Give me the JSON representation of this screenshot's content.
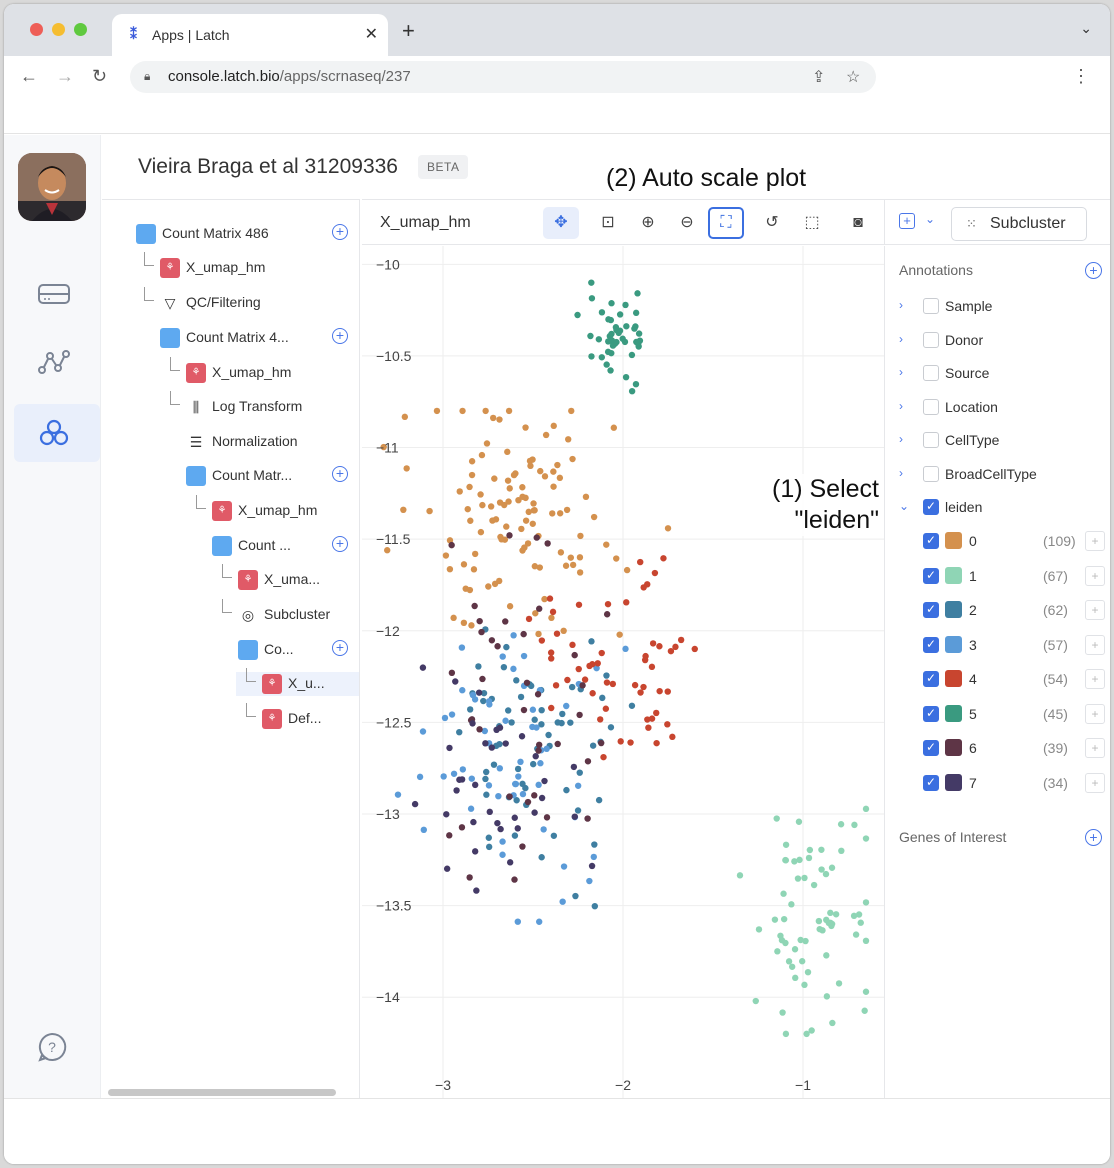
{
  "browser": {
    "tab_title": "Apps | Latch",
    "url_host": "console.latch.bio",
    "url_path": "/apps/scrnaseq/237"
  },
  "header": {
    "title": "Vieira Braga et al 31209336",
    "badge": "BETA"
  },
  "annotations": {
    "auto_scale": "(2) Auto scale plot",
    "select_line1": "(1) Select",
    "select_line2": "\"leiden\""
  },
  "tree": [
    {
      "label": "Count Matrix 486",
      "icon": "matrix-icon"
    },
    {
      "label": "X_umap_hm",
      "icon": "embedding-icon"
    },
    {
      "label": "QC/Filtering",
      "icon": "filter-icon"
    },
    {
      "label": "Count Matrix 4...",
      "icon": "matrix-icon"
    },
    {
      "label": "X_umap_hm",
      "icon": "embedding-icon"
    },
    {
      "label": "Log Transform",
      "icon": "bar-chart-icon"
    },
    {
      "label": "Normalization",
      "icon": "list-icon"
    },
    {
      "label": "Count Matr...",
      "icon": "matrix-icon"
    },
    {
      "label": "X_umap_hm",
      "icon": "embedding-icon"
    },
    {
      "label": "Count ...",
      "icon": "matrix-icon"
    },
    {
      "label": "X_uma...",
      "icon": "embedding-icon"
    },
    {
      "label": "Subcluster",
      "icon": "target-icon"
    },
    {
      "label": "Co...",
      "icon": "matrix-icon"
    },
    {
      "label": "X_u...",
      "icon": "embedding-icon"
    },
    {
      "label": "Def...",
      "icon": "embedding-icon"
    }
  ],
  "plot": {
    "name": "X_umap_hm",
    "toolbar": [
      "pan-icon",
      "zoom-box-icon",
      "zoom-in-icon",
      "zoom-out-icon",
      "autoscale-icon",
      "lasso-icon",
      "box-select-icon",
      "camera-icon"
    ]
  },
  "panel": {
    "subcluster_label": "Subcluster",
    "annotations_title": "Annotations",
    "genes_title": "Genes of Interest",
    "fields": [
      "Sample",
      "Donor",
      "Source",
      "Location",
      "CellType",
      "BroadCellType",
      "leiden"
    ],
    "leiden_clusters": [
      {
        "label": "0",
        "count": "(109)",
        "color": "#d4914e"
      },
      {
        "label": "1",
        "count": "(67)",
        "color": "#8fd5b5"
      },
      {
        "label": "2",
        "count": "(62)",
        "color": "#3f7fa1"
      },
      {
        "label": "3",
        "count": "(57)",
        "color": "#5b9bd8"
      },
      {
        "label": "4",
        "count": "(54)",
        "color": "#c8452f"
      },
      {
        "label": "5",
        "count": "(45)",
        "color": "#3a9a80"
      },
      {
        "label": "6",
        "count": "(39)",
        "color": "#5e3546"
      },
      {
        "label": "7",
        "count": "(34)",
        "color": "#443a66"
      }
    ]
  },
  "chart_data": {
    "type": "scatter",
    "title": "",
    "xlabel": "",
    "ylabel": "",
    "xlim": [
      -3.45,
      -0.55
    ],
    "ylim": [
      -14.55,
      -9.9
    ],
    "x_ticks": [
      "−3",
      "−2",
      "−1"
    ],
    "y_ticks": [
      "−10",
      "−10.5",
      "−11",
      "−11.5",
      "−12",
      "−12.5",
      "−13",
      "−13.5",
      "−14"
    ],
    "grid": true,
    "series": [
      {
        "name": "0",
        "color": "#d4914e",
        "count": 109,
        "x_range": [
          -3.5,
          -1.6
        ],
        "y_range": [
          -12.6,
          -10.8
        ],
        "cluster_center": [
          -2.6,
          -11.4
        ]
      },
      {
        "name": "1",
        "color": "#8fd5b5",
        "count": 67,
        "x_range": [
          -1.7,
          -0.65
        ],
        "y_range": [
          -14.2,
          -12.5
        ],
        "cluster_center": [
          -0.95,
          -13.5
        ]
      },
      {
        "name": "2",
        "color": "#3f7fa1",
        "count": 62,
        "x_range": [
          -3.2,
          -1.8
        ],
        "y_range": [
          -13.6,
          -11.5
        ],
        "cluster_center": [
          -2.5,
          -12.6
        ]
      },
      {
        "name": "3",
        "color": "#5b9bd8",
        "count": 57,
        "x_range": [
          -3.3,
          -1.8
        ],
        "y_range": [
          -14.0,
          -11.5
        ],
        "cluster_center": [
          -2.6,
          -12.7
        ]
      },
      {
        "name": "4",
        "color": "#c8452f",
        "count": 54,
        "x_range": [
          -2.6,
          -1.3
        ],
        "y_range": [
          -13.0,
          -11.4
        ],
        "cluster_center": [
          -2.0,
          -12.2
        ]
      },
      {
        "name": "5",
        "color": "#3a9a80",
        "count": 45,
        "x_range": [
          -2.3,
          -1.8
        ],
        "y_range": [
          -10.8,
          -10.1
        ],
        "cluster_center": [
          -2.05,
          -10.4
        ]
      },
      {
        "name": "6",
        "color": "#5e3546",
        "count": 39,
        "x_range": [
          -3.2,
          -1.7
        ],
        "y_range": [
          -14.0,
          -11.0
        ],
        "cluster_center": [
          -2.6,
          -12.6
        ]
      },
      {
        "name": "7",
        "color": "#443a66",
        "count": 34,
        "x_range": [
          -3.3,
          -1.8
        ],
        "y_range": [
          -13.9,
          -12.0
        ],
        "cluster_center": [
          -2.8,
          -12.9
        ]
      }
    ]
  }
}
